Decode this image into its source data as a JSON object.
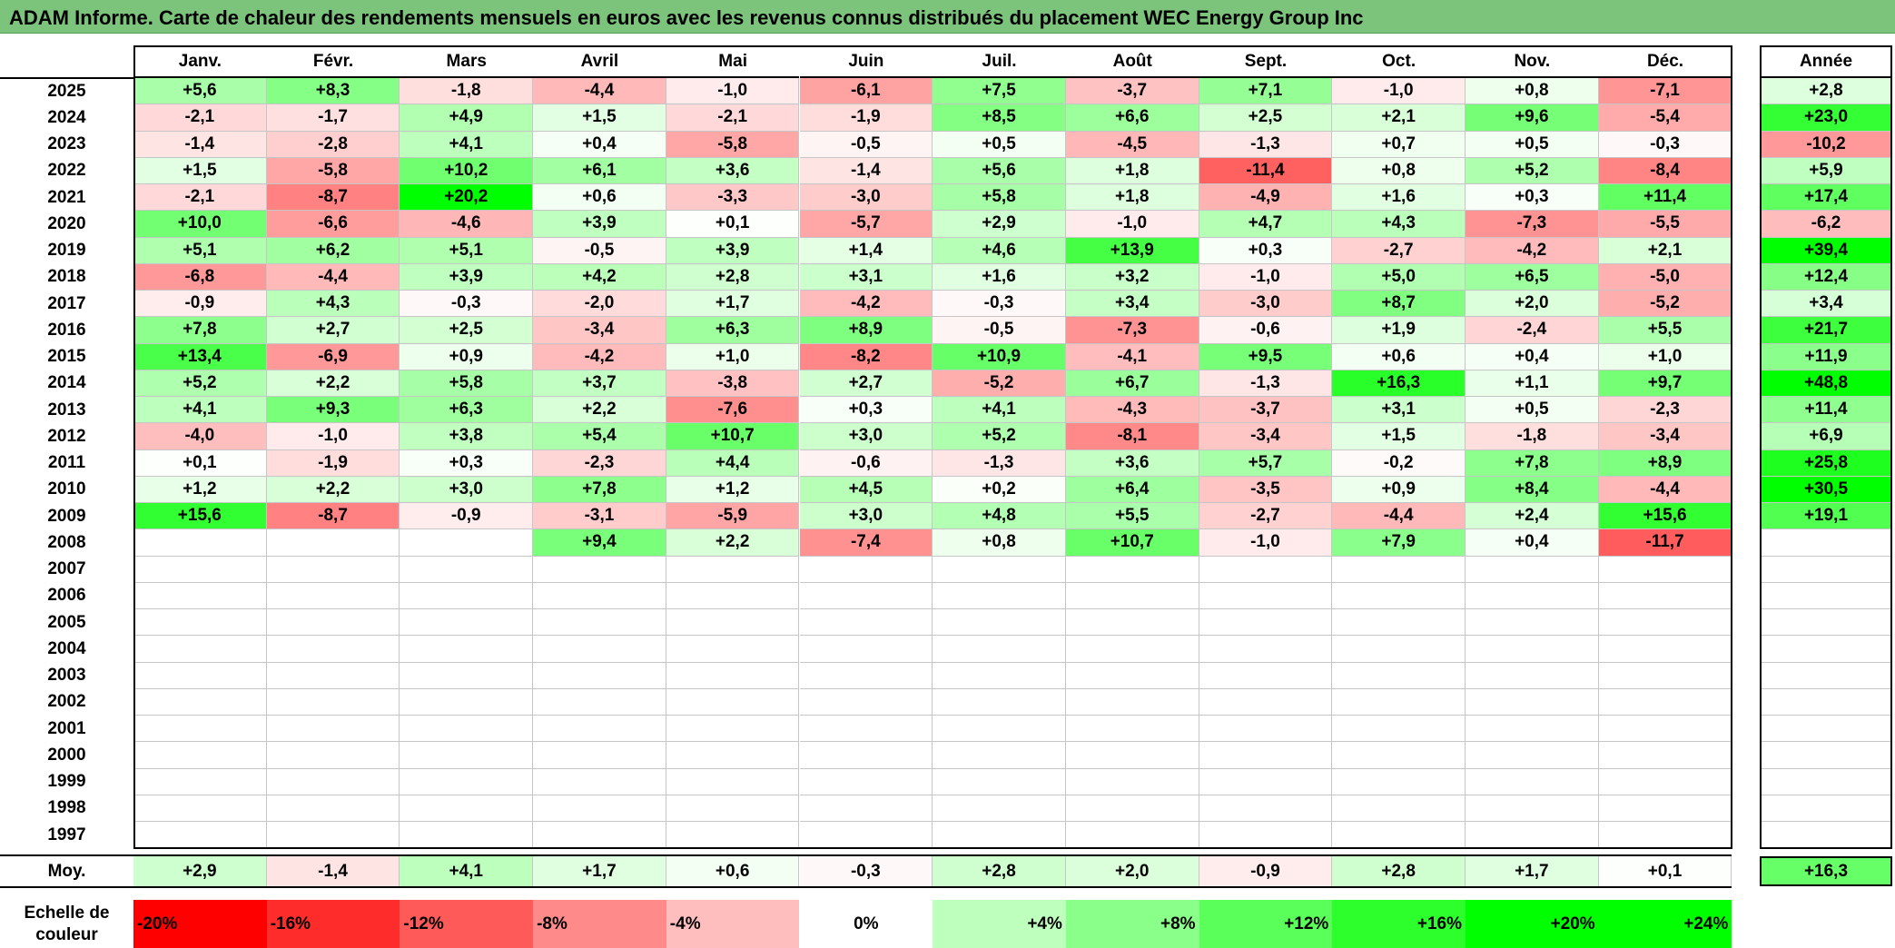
{
  "title": "ADAM Informe. Carte de chaleur des rendements mensuels en euros avec les revenus connus distribués du placement WEC Energy Group Inc",
  "chart_data": {
    "type": "heatmap",
    "title": "ADAM Informe. Carte de chaleur des rendements mensuels en euros avec les revenus connus distribués du placement WEC Energy Group Inc",
    "months": [
      "Janv.",
      "Févr.",
      "Mars",
      "Avril",
      "Mai",
      "Juin",
      "Juil.",
      "Août",
      "Sept.",
      "Oct.",
      "Nov.",
      "Déc."
    ],
    "year_col_label": "Année",
    "avg_row_label": "Moy.",
    "rows": [
      {
        "year": "2025",
        "values": [
          "+5,6",
          "+8,3",
          "-1,8",
          "-4,4",
          "-1,0",
          "-6,1",
          "+7,5",
          "-3,7",
          "+7,1",
          "-1,0",
          "+0,8",
          "-7,1"
        ],
        "annual": "+2,8"
      },
      {
        "year": "2024",
        "values": [
          "-2,1",
          "-1,7",
          "+4,9",
          "+1,5",
          "-2,1",
          "-1,9",
          "+8,5",
          "+6,6",
          "+2,5",
          "+2,1",
          "+9,6",
          "-5,4"
        ],
        "annual": "+23,0"
      },
      {
        "year": "2023",
        "values": [
          "-1,4",
          "-2,8",
          "+4,1",
          "+0,4",
          "-5,8",
          "-0,5",
          "+0,5",
          "-4,5",
          "-1,3",
          "+0,7",
          "+0,5",
          "-0,3"
        ],
        "annual": "-10,2"
      },
      {
        "year": "2022",
        "values": [
          "+1,5",
          "-5,8",
          "+10,2",
          "+6,1",
          "+3,6",
          "-1,4",
          "+5,6",
          "+1,8",
          "-11,4",
          "+0,8",
          "+5,2",
          "-8,4"
        ],
        "annual": "+5,9"
      },
      {
        "year": "2021",
        "values": [
          "-2,1",
          "-8,7",
          "+20,2",
          "+0,6",
          "-3,3",
          "-3,0",
          "+5,8",
          "+1,8",
          "-4,9",
          "+1,6",
          "+0,3",
          "+11,4"
        ],
        "annual": "+17,4"
      },
      {
        "year": "2020",
        "values": [
          "+10,0",
          "-6,6",
          "-4,6",
          "+3,9",
          "+0,1",
          "-5,7",
          "+2,9",
          "-1,0",
          "+4,7",
          "+4,3",
          "-7,3",
          "-5,5"
        ],
        "annual": "-6,2"
      },
      {
        "year": "2019",
        "values": [
          "+5,1",
          "+6,2",
          "+5,1",
          "-0,5",
          "+3,9",
          "+1,4",
          "+4,6",
          "+13,9",
          "+0,3",
          "-2,7",
          "-4,2",
          "+2,1"
        ],
        "annual": "+39,4"
      },
      {
        "year": "2018",
        "values": [
          "-6,8",
          "-4,4",
          "+3,9",
          "+4,2",
          "+2,8",
          "+3,1",
          "+1,6",
          "+3,2",
          "-1,0",
          "+5,0",
          "+6,5",
          "-5,0"
        ],
        "annual": "+12,4"
      },
      {
        "year": "2017",
        "values": [
          "-0,9",
          "+4,3",
          "-0,3",
          "-2,0",
          "+1,7",
          "-4,2",
          "-0,3",
          "+3,4",
          "-3,0",
          "+8,7",
          "+2,0",
          "-5,2"
        ],
        "annual": "+3,4"
      },
      {
        "year": "2016",
        "values": [
          "+7,8",
          "+2,7",
          "+2,5",
          "-3,4",
          "+6,3",
          "+8,9",
          "-0,5",
          "-7,3",
          "-0,6",
          "+1,9",
          "-2,4",
          "+5,5"
        ],
        "annual": "+21,7"
      },
      {
        "year": "2015",
        "values": [
          "+13,4",
          "-6,9",
          "+0,9",
          "-4,2",
          "+1,0",
          "-8,2",
          "+10,9",
          "-4,1",
          "+9,5",
          "+0,6",
          "+0,4",
          "+1,0"
        ],
        "annual": "+11,9"
      },
      {
        "year": "2014",
        "values": [
          "+5,2",
          "+2,2",
          "+5,8",
          "+3,7",
          "-3,8",
          "+2,7",
          "-5,2",
          "+6,7",
          "-1,3",
          "+16,3",
          "+1,1",
          "+9,7"
        ],
        "annual": "+48,8"
      },
      {
        "year": "2013",
        "values": [
          "+4,1",
          "+9,3",
          "+6,3",
          "+2,2",
          "-7,6",
          "+0,3",
          "+4,1",
          "-4,3",
          "-3,7",
          "+3,1",
          "+0,5",
          "-2,3"
        ],
        "annual": "+11,4"
      },
      {
        "year": "2012",
        "values": [
          "-4,0",
          "-1,0",
          "+3,8",
          "+5,4",
          "+10,7",
          "+3,0",
          "+5,2",
          "-8,1",
          "-3,4",
          "+1,5",
          "-1,8",
          "-3,4"
        ],
        "annual": "+6,9"
      },
      {
        "year": "2011",
        "values": [
          "+0,1",
          "-1,9",
          "+0,3",
          "-2,3",
          "+4,4",
          "-0,6",
          "-1,3",
          "+3,6",
          "+5,7",
          "-0,2",
          "+7,8",
          "+8,9"
        ],
        "annual": "+25,8"
      },
      {
        "year": "2010",
        "values": [
          "+1,2",
          "+2,2",
          "+3,0",
          "+7,8",
          "+1,2",
          "+4,5",
          "+0,2",
          "+6,4",
          "-3,5",
          "+0,9",
          "+8,4",
          "-4,4"
        ],
        "annual": "+30,5"
      },
      {
        "year": "2009",
        "values": [
          "+15,6",
          "-8,7",
          "-0,9",
          "-3,1",
          "-5,9",
          "+3,0",
          "+4,8",
          "+5,5",
          "-2,7",
          "-4,4",
          "+2,4",
          "+15,6"
        ],
        "annual": "+19,1"
      },
      {
        "year": "2008",
        "values": [
          "",
          "",
          "",
          "+9,4",
          "+2,2",
          "-7,4",
          "+0,8",
          "+10,7",
          "-1,0",
          "+7,9",
          "+0,4",
          "-11,7"
        ],
        "annual": ""
      },
      {
        "year": "2007",
        "values": [
          "",
          "",
          "",
          "",
          "",
          "",
          "",
          "",
          "",
          "",
          "",
          ""
        ],
        "annual": ""
      },
      {
        "year": "2006",
        "values": [
          "",
          "",
          "",
          "",
          "",
          "",
          "",
          "",
          "",
          "",
          "",
          ""
        ],
        "annual": ""
      },
      {
        "year": "2005",
        "values": [
          "",
          "",
          "",
          "",
          "",
          "",
          "",
          "",
          "",
          "",
          "",
          ""
        ],
        "annual": ""
      },
      {
        "year": "2004",
        "values": [
          "",
          "",
          "",
          "",
          "",
          "",
          "",
          "",
          "",
          "",
          "",
          ""
        ],
        "annual": ""
      },
      {
        "year": "2003",
        "values": [
          "",
          "",
          "",
          "",
          "",
          "",
          "",
          "",
          "",
          "",
          "",
          ""
        ],
        "annual": ""
      },
      {
        "year": "2002",
        "values": [
          "",
          "",
          "",
          "",
          "",
          "",
          "",
          "",
          "",
          "",
          "",
          ""
        ],
        "annual": ""
      },
      {
        "year": "2001",
        "values": [
          "",
          "",
          "",
          "",
          "",
          "",
          "",
          "",
          "",
          "",
          "",
          ""
        ],
        "annual": ""
      },
      {
        "year": "2000",
        "values": [
          "",
          "",
          "",
          "",
          "",
          "",
          "",
          "",
          "",
          "",
          "",
          ""
        ],
        "annual": ""
      },
      {
        "year": "1999",
        "values": [
          "",
          "",
          "",
          "",
          "",
          "",
          "",
          "",
          "",
          "",
          "",
          ""
        ],
        "annual": ""
      },
      {
        "year": "1998",
        "values": [
          "",
          "",
          "",
          "",
          "",
          "",
          "",
          "",
          "",
          "",
          "",
          ""
        ],
        "annual": ""
      },
      {
        "year": "1997",
        "values": [
          "",
          "",
          "",
          "",
          "",
          "",
          "",
          "",
          "",
          "",
          "",
          ""
        ],
        "annual": ""
      }
    ],
    "averages": [
      "+2,9",
      "-1,4",
      "+4,1",
      "+1,7",
      "+0,6",
      "-0,3",
      "+2,8",
      "+2,0",
      "-0,9",
      "+2,8",
      "+1,7",
      "+0,1"
    ],
    "average_annual": "+16,3",
    "scale_label": "Echelle de couleur",
    "scale": [
      {
        "label": "-20%",
        "value": -20
      },
      {
        "label": "-16%",
        "value": -16
      },
      {
        "label": "-12%",
        "value": -12
      },
      {
        "label": "-8%",
        "value": -8
      },
      {
        "label": "-4%",
        "value": -4
      },
      {
        "label": "0%",
        "value": 0
      },
      {
        "label": "+4%",
        "value": 4
      },
      {
        "label": "+8%",
        "value": 8
      },
      {
        "label": "+12%",
        "value": 12
      },
      {
        "label": "+16%",
        "value": 16
      },
      {
        "label": "+20%",
        "value": 20
      },
      {
        "label": "+24%",
        "value": 24
      }
    ],
    "colors": {
      "negative": "#ff0000",
      "neutral": "#ffffff",
      "positive": "#00ff00",
      "title_bg": "#7cc47c"
    }
  }
}
